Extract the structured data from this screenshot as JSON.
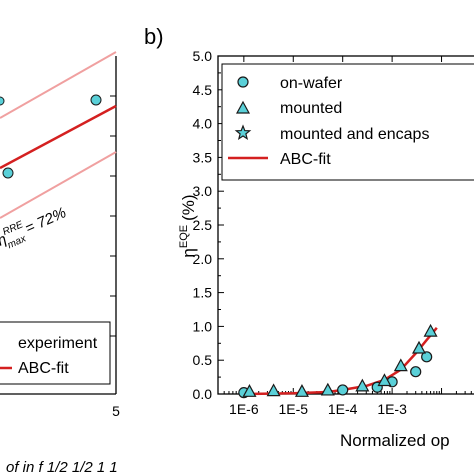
{
  "colors": {
    "fit": "#d42020",
    "bound": "#f0a0a0",
    "marker_fill": "#5ad0d8",
    "marker_stroke": "#1a1a1a",
    "axis": "#000000"
  },
  "left_panel": {
    "x_tick_label": "5",
    "annotation": "η",
    "annotation_sup": "RRE",
    "annotation_sub": "max",
    "annotation_value": " = 72%",
    "legend": [
      {
        "label": "experiment"
      },
      {
        "label": "ABC-fit"
      }
    ]
  },
  "right_panel": {
    "panel_label": "b)",
    "ylabel": "η",
    "ylabel_sup": "EQE",
    "ylabel_unit": "(%)",
    "xlabel": "Normalized op",
    "bottom_text": "of       in     f   1/2      1/2     1   1"
  },
  "chart_data": {
    "type": "scatter",
    "x_scale": "log",
    "xlim": [
      3e-07,
      0.06
    ],
    "ylim": [
      0,
      5
    ],
    "x_ticks": [
      {
        "value": 1e-06,
        "label": "1E-6"
      },
      {
        "value": 1e-05,
        "label": "1E-5"
      },
      {
        "value": 0.0001,
        "label": "1E-4"
      },
      {
        "value": 0.001,
        "label": "1E-3"
      },
      {
        "value": 0.01,
        "label": ""
      }
    ],
    "y_ticks": [
      {
        "value": 0.0,
        "label": "0.0"
      },
      {
        "value": 0.5,
        "label": "0.5"
      },
      {
        "value": 1.0,
        "label": "1.0"
      },
      {
        "value": 1.5,
        "label": "1.5"
      },
      {
        "value": 2.0,
        "label": "2.0"
      },
      {
        "value": 2.5,
        "label": "2.5"
      },
      {
        "value": 3.0,
        "label": "3.0"
      },
      {
        "value": 3.5,
        "label": "3.5"
      },
      {
        "value": 4.0,
        "label": "4.0"
      },
      {
        "value": 4.5,
        "label": "4.5"
      },
      {
        "value": 5.0,
        "label": "5.0"
      }
    ],
    "series": [
      {
        "name": "on-wafer",
        "marker": "circle",
        "x": [
          1e-06,
          0.0001,
          0.0005,
          0.001,
          0.003,
          0.005
        ],
        "y": [
          0.02,
          0.06,
          0.1,
          0.18,
          0.33,
          0.55
        ]
      },
      {
        "name": "mounted",
        "marker": "triangle",
        "x": [
          1.3e-06,
          4e-06,
          1.5e-05,
          5e-05,
          0.00025,
          0.0007,
          0.0015,
          0.0035,
          0.006
        ],
        "y": [
          0.04,
          0.05,
          0.04,
          0.06,
          0.12,
          0.2,
          0.42,
          0.68,
          0.93
        ]
      },
      {
        "name": "mounted and encaps",
        "marker": "star",
        "x": [],
        "y": []
      },
      {
        "name": "ABC-fit",
        "marker": "line",
        "x": [
          1e-06,
          1e-05,
          5e-05,
          0.0001,
          0.0003,
          0.0007,
          0.0015,
          0.003,
          0.005,
          0.008
        ],
        "y": [
          0.0,
          0.01,
          0.03,
          0.06,
          0.12,
          0.21,
          0.36,
          0.6,
          0.8,
          0.98
        ]
      }
    ]
  }
}
